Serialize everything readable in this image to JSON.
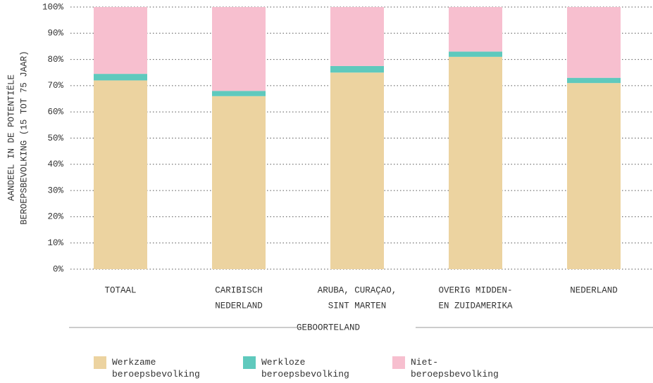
{
  "chart_data": {
    "type": "stacked_bar",
    "ylabel": [
      "AANDEEL IN DE POTENTIËLE",
      "BEROEPSBEVOLKING (15 TOT 75 JAAR)"
    ],
    "xlabel": "GEBOORTELAND",
    "categories": [
      [
        "TOTAAL"
      ],
      [
        "CARIBISCH",
        "NEDERLAND"
      ],
      [
        "ARUBA, CURAÇAO,",
        "SINT MARTEN"
      ],
      [
        "OVERIG MIDDEN-",
        "EN ZUIDAMERIKA"
      ],
      [
        "NEDERLAND"
      ]
    ],
    "series": [
      {
        "name": "Werkzame beroepsbevolking",
        "color": "#ecd3a0",
        "values": [
          72,
          66,
          75,
          81,
          71
        ]
      },
      {
        "name": "Werkloze beroepsbevolking",
        "color": "#5fc9bd",
        "values": [
          2.5,
          2,
          2.5,
          2,
          2
        ]
      },
      {
        "name": "Niet-beroepsbevolking",
        "color": "#f7bfcf",
        "values": [
          25.5,
          32,
          22.5,
          17,
          27
        ]
      }
    ],
    "ylim": [
      0,
      100
    ],
    "yticks": [
      {
        "value": 0,
        "label": "0%"
      },
      {
        "value": 10,
        "label": "10%"
      },
      {
        "value": 20,
        "label": "20%"
      },
      {
        "value": 30,
        "label": "30%"
      },
      {
        "value": 40,
        "label": "40%"
      },
      {
        "value": 50,
        "label": "50%"
      },
      {
        "value": 60,
        "label": "60%"
      },
      {
        "value": 70,
        "label": "70%"
      },
      {
        "value": 80,
        "label": "80%"
      },
      {
        "value": 90,
        "label": "90%"
      },
      {
        "value": 100,
        "label": "100%"
      }
    ],
    "grid": true
  }
}
